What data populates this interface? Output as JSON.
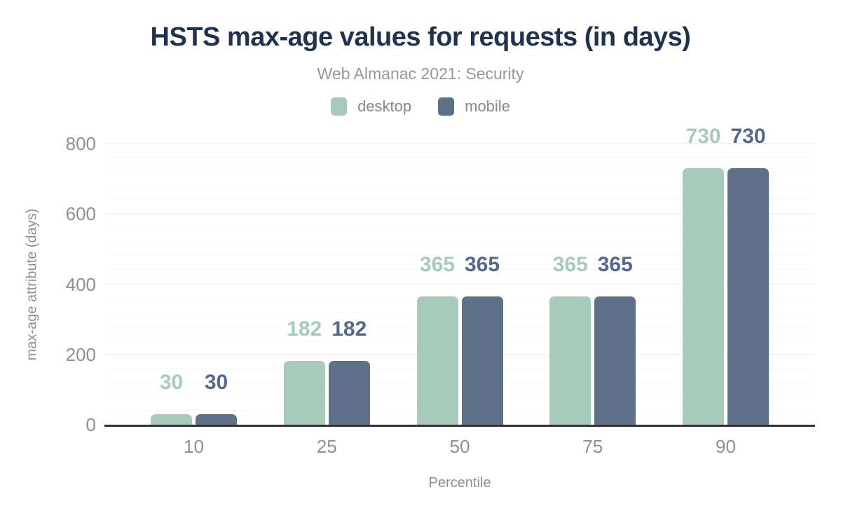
{
  "chart_data": {
    "type": "bar",
    "title": "HSTS max-age values for requests (in days)",
    "subtitle": "Web Almanac 2021: Security",
    "categories": [
      "10",
      "25",
      "50",
      "75",
      "90"
    ],
    "series": [
      {
        "name": "desktop",
        "color": "#a7cabb",
        "label_color": "#a6cabb",
        "values": [
          30,
          182,
          365,
          365,
          730
        ]
      },
      {
        "name": "mobile",
        "color": "#5f7089",
        "label_color": "#56688b",
        "values": [
          30,
          182,
          365,
          365,
          730
        ]
      }
    ],
    "xlabel": "Percentile",
    "ylabel": "max-age attribute (days)",
    "ylim": [
      0,
      800
    ],
    "yticks": [
      0,
      200,
      400,
      600,
      800
    ],
    "y_minor_step": 40,
    "grid": "horizontal-only",
    "legend_position": "top-center"
  },
  "colors": {
    "background": "#ffffff",
    "title": "#1f3251",
    "subtitle": "#95989b",
    "axis_text": "#8d9093",
    "axis_title_text": "#8c8f92",
    "legend_text": "#85888c",
    "grid_major": "#ececec",
    "grid_minor": "#f7f7f7",
    "axis_line": "#2f3339"
  }
}
